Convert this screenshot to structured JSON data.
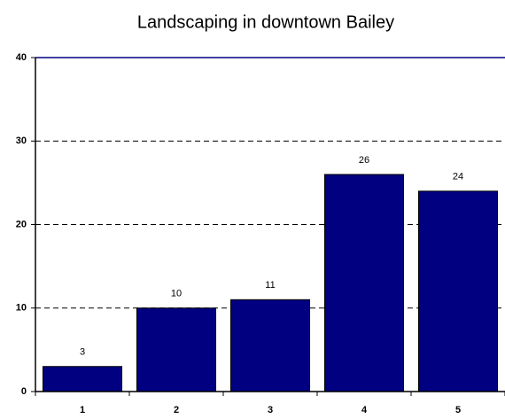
{
  "chart_data": {
    "type": "bar",
    "title": "Landscaping in downtown Bailey",
    "categories": [
      "1",
      "2",
      "3",
      "4",
      "5"
    ],
    "values": [
      3,
      10,
      11,
      26,
      24
    ],
    "color": "#000080",
    "ylim": [
      0,
      40
    ],
    "yticks": [
      0,
      10,
      20,
      30,
      40
    ],
    "grid": true
  }
}
